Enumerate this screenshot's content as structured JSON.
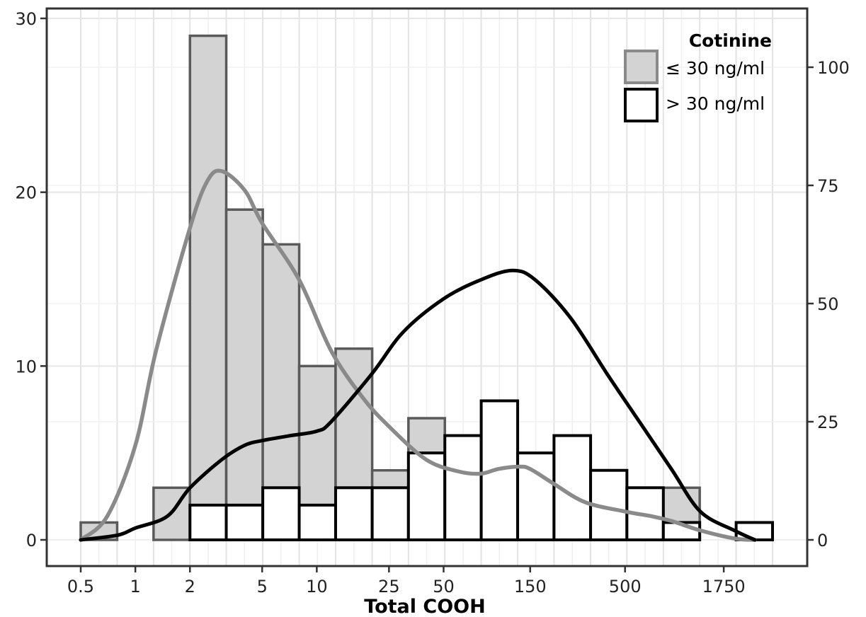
{
  "chart_data": {
    "type": "histogram",
    "xlabel": "Total COOH",
    "x_scale": "log",
    "x_tick_labels": [
      "0.5",
      "1",
      "2",
      "5",
      "10",
      "25",
      "50",
      "150",
      "500",
      "1750"
    ],
    "y_left_ticks": [
      "0",
      "10",
      "20",
      "30"
    ],
    "y_left_lim": [
      0,
      30
    ],
    "y_right_ticks": [
      "0",
      "25",
      "50",
      "75",
      "100"
    ],
    "y_right_lim": [
      0,
      100
    ],
    "grid": true,
    "legend": {
      "title": "Cotinine",
      "position": "top-right"
    },
    "bin_edges": [
      0.5,
      0.794,
      1.26,
      2,
      3.17,
      5.04,
      8,
      12.7,
      20.2,
      32,
      50.8,
      80.6,
      128,
      203,
      323,
      512,
      813,
      1290,
      2048,
      3250
    ],
    "series": [
      {
        "name": "≤ 30 ng/ml",
        "fill": "#d3d3d3",
        "stroke": "#5a5a5a",
        "bin_counts": [
          1,
          0,
          3,
          29,
          19,
          17,
          10,
          11,
          4,
          7,
          1,
          4,
          5,
          2,
          3,
          0,
          3,
          0,
          0
        ],
        "density_points": [
          [
            0.5,
            0
          ],
          [
            0.7,
            5
          ],
          [
            1,
            20
          ],
          [
            1.3,
            40
          ],
          [
            2,
            66
          ],
          [
            2.5,
            76
          ],
          [
            3,
            78
          ],
          [
            4,
            74
          ],
          [
            5,
            67
          ],
          [
            8,
            55
          ],
          [
            12,
            40
          ],
          [
            18,
            30
          ],
          [
            25,
            24
          ],
          [
            40,
            17
          ],
          [
            60,
            14.5
          ],
          [
            80,
            14
          ],
          [
            100,
            15
          ],
          [
            130,
            15.5
          ],
          [
            150,
            15
          ],
          [
            200,
            12
          ],
          [
            300,
            8
          ],
          [
            500,
            6
          ],
          [
            700,
            5
          ],
          [
            900,
            4
          ],
          [
            1300,
            2
          ],
          [
            2000,
            0.3
          ],
          [
            2600,
            0
          ]
        ]
      },
      {
        "name": "> 30 ng/ml",
        "fill": "#ffffff",
        "stroke": "#000000",
        "bin_counts": [
          0,
          0,
          0,
          2,
          2,
          3,
          2,
          3,
          3,
          5,
          6,
          8,
          5,
          6,
          4,
          3,
          1,
          0,
          1
        ],
        "density_points": [
          [
            0.5,
            0
          ],
          [
            0.8,
            1
          ],
          [
            1,
            2.5
          ],
          [
            1.5,
            5
          ],
          [
            2,
            11
          ],
          [
            3,
            17
          ],
          [
            4,
            20
          ],
          [
            5,
            21
          ],
          [
            7,
            22
          ],
          [
            10,
            23
          ],
          [
            12,
            25
          ],
          [
            20,
            35
          ],
          [
            30,
            44
          ],
          [
            50,
            51
          ],
          [
            80,
            55
          ],
          [
            120,
            57
          ],
          [
            160,
            55
          ],
          [
            250,
            47
          ],
          [
            400,
            35
          ],
          [
            600,
            25
          ],
          [
            900,
            15
          ],
          [
            1300,
            6
          ],
          [
            2000,
            2
          ],
          [
            2600,
            0
          ]
        ]
      }
    ]
  }
}
